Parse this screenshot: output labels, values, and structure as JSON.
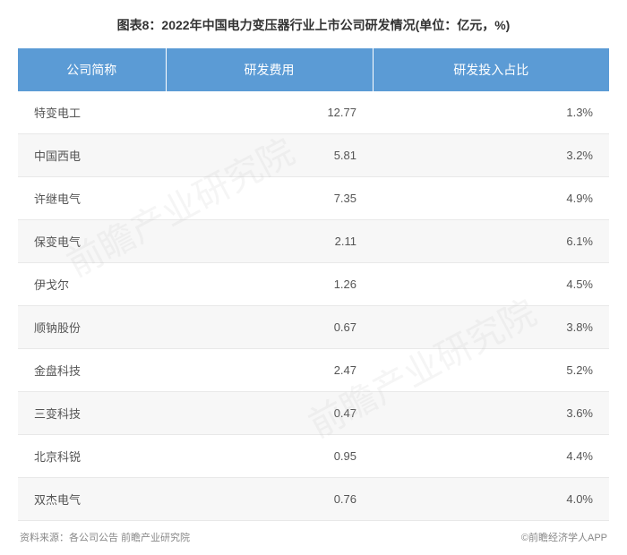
{
  "title": "图表8：2022年中国电力变压器行业上市公司研发情况(单位：亿元，%)",
  "table": {
    "type": "table",
    "header_bg": "#5b9bd5",
    "header_color": "#ffffff",
    "row_alt_bg": "#f7f7f7",
    "row_bg": "#ffffff",
    "border_color": "#e8e8e8",
    "text_color": "#555555",
    "columns": [
      "公司简称",
      "研发费用",
      "研发投入占比"
    ],
    "rows": [
      {
        "company": "特变电工",
        "expense": "12.77",
        "ratio": "1.3%"
      },
      {
        "company": "中国西电",
        "expense": "5.81",
        "ratio": "3.2%"
      },
      {
        "company": "许继电气",
        "expense": "7.35",
        "ratio": "4.9%"
      },
      {
        "company": "保变电气",
        "expense": "2.11",
        "ratio": "6.1%"
      },
      {
        "company": "伊戈尔",
        "expense": "1.26",
        "ratio": "4.5%"
      },
      {
        "company": "顺钠股份",
        "expense": "0.67",
        "ratio": "3.8%"
      },
      {
        "company": "金盘科技",
        "expense": "2.47",
        "ratio": "5.2%"
      },
      {
        "company": "三变科技",
        "expense": "0.47",
        "ratio": "3.6%"
      },
      {
        "company": "北京科锐",
        "expense": "0.95",
        "ratio": "4.4%"
      },
      {
        "company": "双杰电气",
        "expense": "0.76",
        "ratio": "4.0%"
      }
    ]
  },
  "source": "资料来源：各公司公告 前瞻产业研究院",
  "attribution": "©前瞻经济学人APP",
  "watermark": "前瞻产业研究院"
}
